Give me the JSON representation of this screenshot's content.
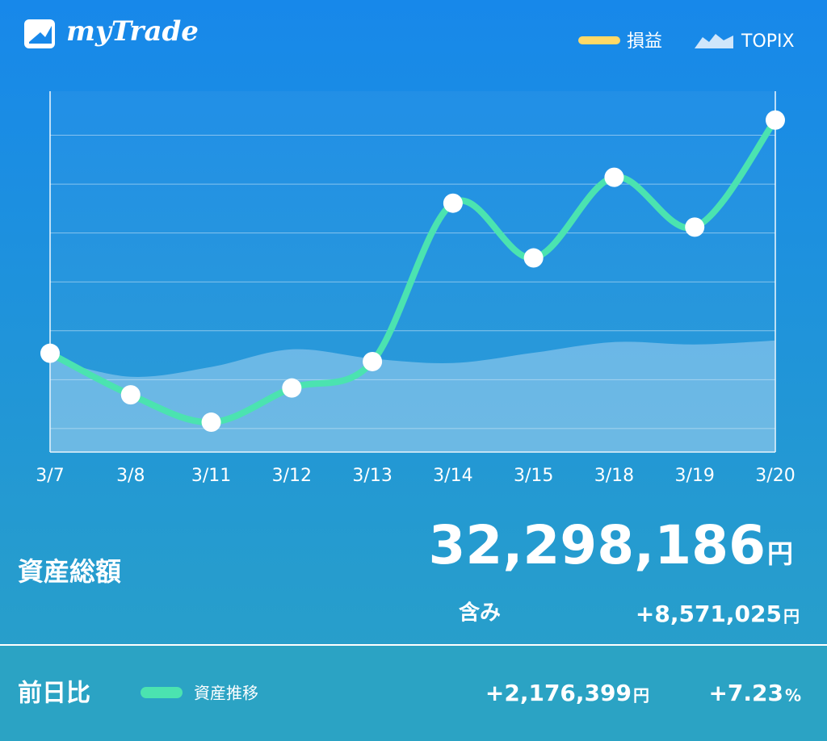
{
  "app": {
    "logo": "myTrade"
  },
  "chart_data": {
    "type": "line",
    "categories": [
      "3/7",
      "3/8",
      "3/11",
      "3/12",
      "3/13",
      "3/14",
      "3/15",
      "3/18",
      "3/19",
      "3/20"
    ],
    "series": [
      {
        "name": "資産推移",
        "color": "#4be3b0",
        "values": [
          1.54,
          0.69,
          0.13,
          0.83,
          1.37,
          4.61,
          3.49,
          5.14,
          4.12,
          6.31
        ]
      },
      {
        "name": "TOPIX",
        "color": "#cfe6fb",
        "area": true,
        "values": [
          1.43,
          1.06,
          1.26,
          1.62,
          1.43,
          1.34,
          1.55,
          1.77,
          1.72,
          1.8
        ]
      }
    ],
    "legend": [
      {
        "name": "損益",
        "color": "#ffd966"
      },
      {
        "name": "TOPIX",
        "color": "#cfe6fb"
      }
    ],
    "ylim": [
      -0.48,
      6.9
    ],
    "yticks": [
      0,
      1,
      2,
      3,
      4,
      5,
      6
    ],
    "grid": true
  },
  "summary": {
    "label": "資産総額",
    "total": "32,298,186",
    "total_unit": "円",
    "unrealized_label": "含み",
    "unrealized": "+8,571,025",
    "unrealized_unit": "円"
  },
  "daily": {
    "label": "前日比",
    "legend": "資産推移",
    "change": "+2,176,399",
    "change_unit": "円",
    "percent": "+7.23",
    "percent_unit": "%"
  }
}
